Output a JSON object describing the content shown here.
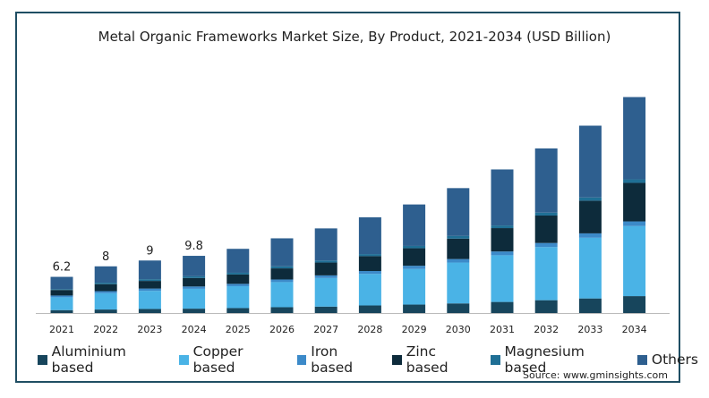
{
  "chart_data": {
    "type": "bar",
    "stacked": true,
    "title": "Metal Organic Frameworks Market Size, By Product, 2021-2034 (USD Billion)",
    "categories": [
      "2021",
      "2022",
      "2023",
      "2024",
      "2025",
      "2026",
      "2027",
      "2028",
      "2029",
      "2030",
      "2031",
      "2032",
      "2033",
      "2034"
    ],
    "totals": [
      6.2,
      8.0,
      9.0,
      9.8,
      11.0,
      12.8,
      14.5,
      16.4,
      18.6,
      21.4,
      24.6,
      28.2,
      32.1,
      37.0
    ],
    "data_labels": [
      "6.2",
      "8",
      "9",
      "9.8",
      "",
      "",
      "",
      "",
      "",
      "",
      "",
      "",
      "",
      ""
    ],
    "series": [
      {
        "name": "Aluminium based",
        "color": "#17455c",
        "values": [
          0.5,
          0.6,
          0.7,
          0.75,
          0.85,
          1.0,
          1.1,
          1.3,
          1.45,
          1.65,
          1.9,
          2.2,
          2.5,
          2.9
        ]
      },
      {
        "name": "Copper based",
        "color": "#4ab3e6",
        "values": [
          2.2,
          2.8,
          3.1,
          3.4,
          3.75,
          4.3,
          4.9,
          5.4,
          6.1,
          7.0,
          8.0,
          9.1,
          10.4,
          12.0
        ]
      },
      {
        "name": "Iron based",
        "color": "#3c8ac9",
        "values": [
          0.3,
          0.35,
          0.4,
          0.4,
          0.4,
          0.45,
          0.45,
          0.5,
          0.55,
          0.6,
          0.65,
          0.7,
          0.75,
          0.8
        ]
      },
      {
        "name": "Zinc based",
        "color": "#0d2b3b",
        "values": [
          0.95,
          1.2,
          1.3,
          1.45,
          1.6,
          1.9,
          2.2,
          2.55,
          3.0,
          3.5,
          4.0,
          4.7,
          5.6,
          6.6
        ]
      },
      {
        "name": "Magnesium based",
        "color": "#1f6f95",
        "values": [
          0.15,
          0.25,
          0.3,
          0.3,
          0.3,
          0.35,
          0.35,
          0.35,
          0.4,
          0.45,
          0.45,
          0.5,
          0.55,
          0.6
        ]
      },
      {
        "name": "Others",
        "color": "#2e5f8f",
        "values": [
          2.1,
          2.8,
          3.2,
          3.5,
          4.1,
          4.8,
          5.5,
          6.3,
          7.1,
          8.2,
          9.6,
          11.0,
          12.3,
          14.1
        ]
      }
    ],
    "ylim": [
      0,
      38
    ],
    "grid": false,
    "legend_position": "bottom"
  },
  "source": "Source: www.gminsights.com"
}
